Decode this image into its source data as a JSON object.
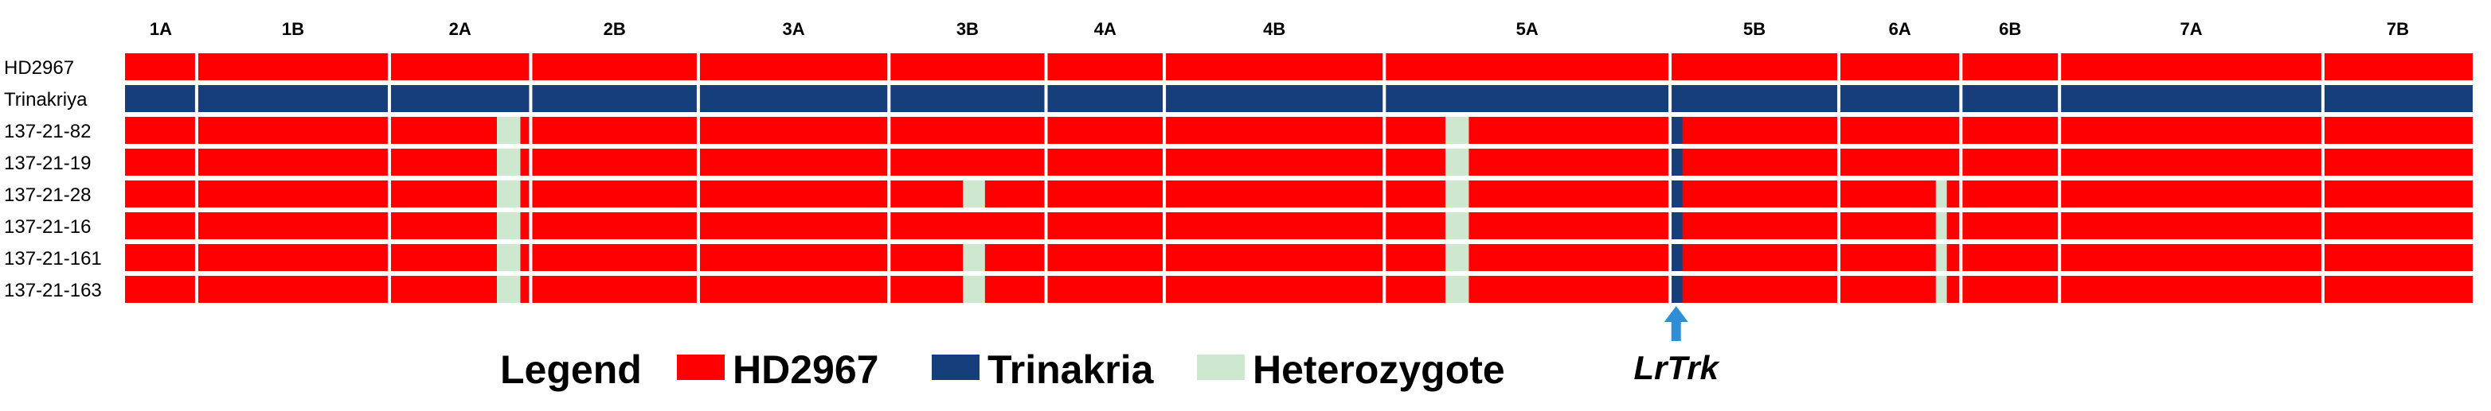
{
  "colors": {
    "HD2967": "#ff0000",
    "Trinakria": "#163e7a",
    "Heterozygote": "#cde8cf",
    "divider": "#ffffff",
    "arrow": "#2f8ed6"
  },
  "chromosomes": [
    {
      "label": "1A",
      "start": 0,
      "end": 0.0305
    },
    {
      "label": "1B",
      "start": 0.0305,
      "end": 0.1126
    },
    {
      "label": "2A",
      "start": 0.1126,
      "end": 0.1728
    },
    {
      "label": "2B",
      "start": 0.1728,
      "end": 0.2442
    },
    {
      "label": "3A",
      "start": 0.2442,
      "end": 0.3254
    },
    {
      "label": "3B",
      "start": 0.3254,
      "end": 0.3923
    },
    {
      "label": "4A",
      "start": 0.3923,
      "end": 0.4427
    },
    {
      "label": "4B",
      "start": 0.4427,
      "end": 0.5364
    },
    {
      "label": "5A",
      "start": 0.5364,
      "end": 0.6581
    },
    {
      "label": "5B",
      "start": 0.6581,
      "end": 0.73
    },
    {
      "label": "6A",
      "start": 0.73,
      "end": 0.782
    },
    {
      "label": "6B",
      "start": 0.782,
      "end": 0.824
    },
    {
      "label": "7A",
      "start": 0.824,
      "end": 0.9362
    },
    {
      "label": "7B",
      "start": 0.9362,
      "end": 1.0
    }
  ],
  "rows": [
    {
      "label": "HD2967",
      "base": "HD2967",
      "segments": []
    },
    {
      "label": "Trinakriya",
      "base": "Trinakria",
      "segments": []
    },
    {
      "label": "137-21-82",
      "base": "HD2967",
      "segments": [
        {
          "start": 0.1584,
          "end": 0.1684,
          "type": "Heterozygote"
        },
        {
          "start": 0.5624,
          "end": 0.5724,
          "type": "Heterozygote"
        },
        {
          "start": 0.6581,
          "end": 0.6634,
          "type": "Trinakria"
        }
      ]
    },
    {
      "label": "137-21-19",
      "base": "HD2967",
      "segments": [
        {
          "start": 0.1584,
          "end": 0.1684,
          "type": "Heterozygote"
        },
        {
          "start": 0.5624,
          "end": 0.5724,
          "type": "Heterozygote"
        },
        {
          "start": 0.6581,
          "end": 0.6634,
          "type": "Trinakria"
        }
      ]
    },
    {
      "label": "137-21-28",
      "base": "HD2967",
      "segments": [
        {
          "start": 0.1584,
          "end": 0.1684,
          "type": "Heterozygote"
        },
        {
          "start": 0.3569,
          "end": 0.3663,
          "type": "Heterozygote"
        },
        {
          "start": 0.5624,
          "end": 0.5724,
          "type": "Heterozygote"
        },
        {
          "start": 0.6581,
          "end": 0.6634,
          "type": "Trinakria"
        },
        {
          "start": 0.7713,
          "end": 0.776,
          "type": "Heterozygote"
        }
      ]
    },
    {
      "label": "137-21-16",
      "base": "HD2967",
      "segments": [
        {
          "start": 0.1584,
          "end": 0.1684,
          "type": "Heterozygote"
        },
        {
          "start": 0.5624,
          "end": 0.5724,
          "type": "Heterozygote"
        },
        {
          "start": 0.6581,
          "end": 0.6634,
          "type": "Trinakria"
        },
        {
          "start": 0.7713,
          "end": 0.776,
          "type": "Heterozygote"
        }
      ]
    },
    {
      "label": "137-21-161",
      "base": "HD2967",
      "segments": [
        {
          "start": 0.1584,
          "end": 0.1684,
          "type": "Heterozygote"
        },
        {
          "start": 0.3569,
          "end": 0.3663,
          "type": "Heterozygote"
        },
        {
          "start": 0.5624,
          "end": 0.5724,
          "type": "Heterozygote"
        },
        {
          "start": 0.6581,
          "end": 0.6634,
          "type": "Trinakria"
        },
        {
          "start": 0.7713,
          "end": 0.776,
          "type": "Heterozygote"
        }
      ]
    },
    {
      "label": "137-21-163",
      "base": "HD2967",
      "segments": [
        {
          "start": 0.1584,
          "end": 0.1684,
          "type": "Heterozygote"
        },
        {
          "start": 0.3569,
          "end": 0.3663,
          "type": "Heterozygote"
        },
        {
          "start": 0.5624,
          "end": 0.5724,
          "type": "Heterozygote"
        },
        {
          "start": 0.6581,
          "end": 0.6634,
          "type": "Trinakria"
        },
        {
          "start": 0.7713,
          "end": 0.776,
          "type": "Heterozygote"
        }
      ]
    }
  ],
  "legend": {
    "title": "Legend",
    "items": [
      {
        "label": "HD2967",
        "type": "HD2967"
      },
      {
        "label": "Trinakria",
        "type": "Trinakria"
      },
      {
        "label": "Heterozygote",
        "type": "Heterozygote"
      }
    ]
  },
  "marker": {
    "label": "LrTrk",
    "position": 0.6607,
    "icon": "arrow-up-icon"
  }
}
